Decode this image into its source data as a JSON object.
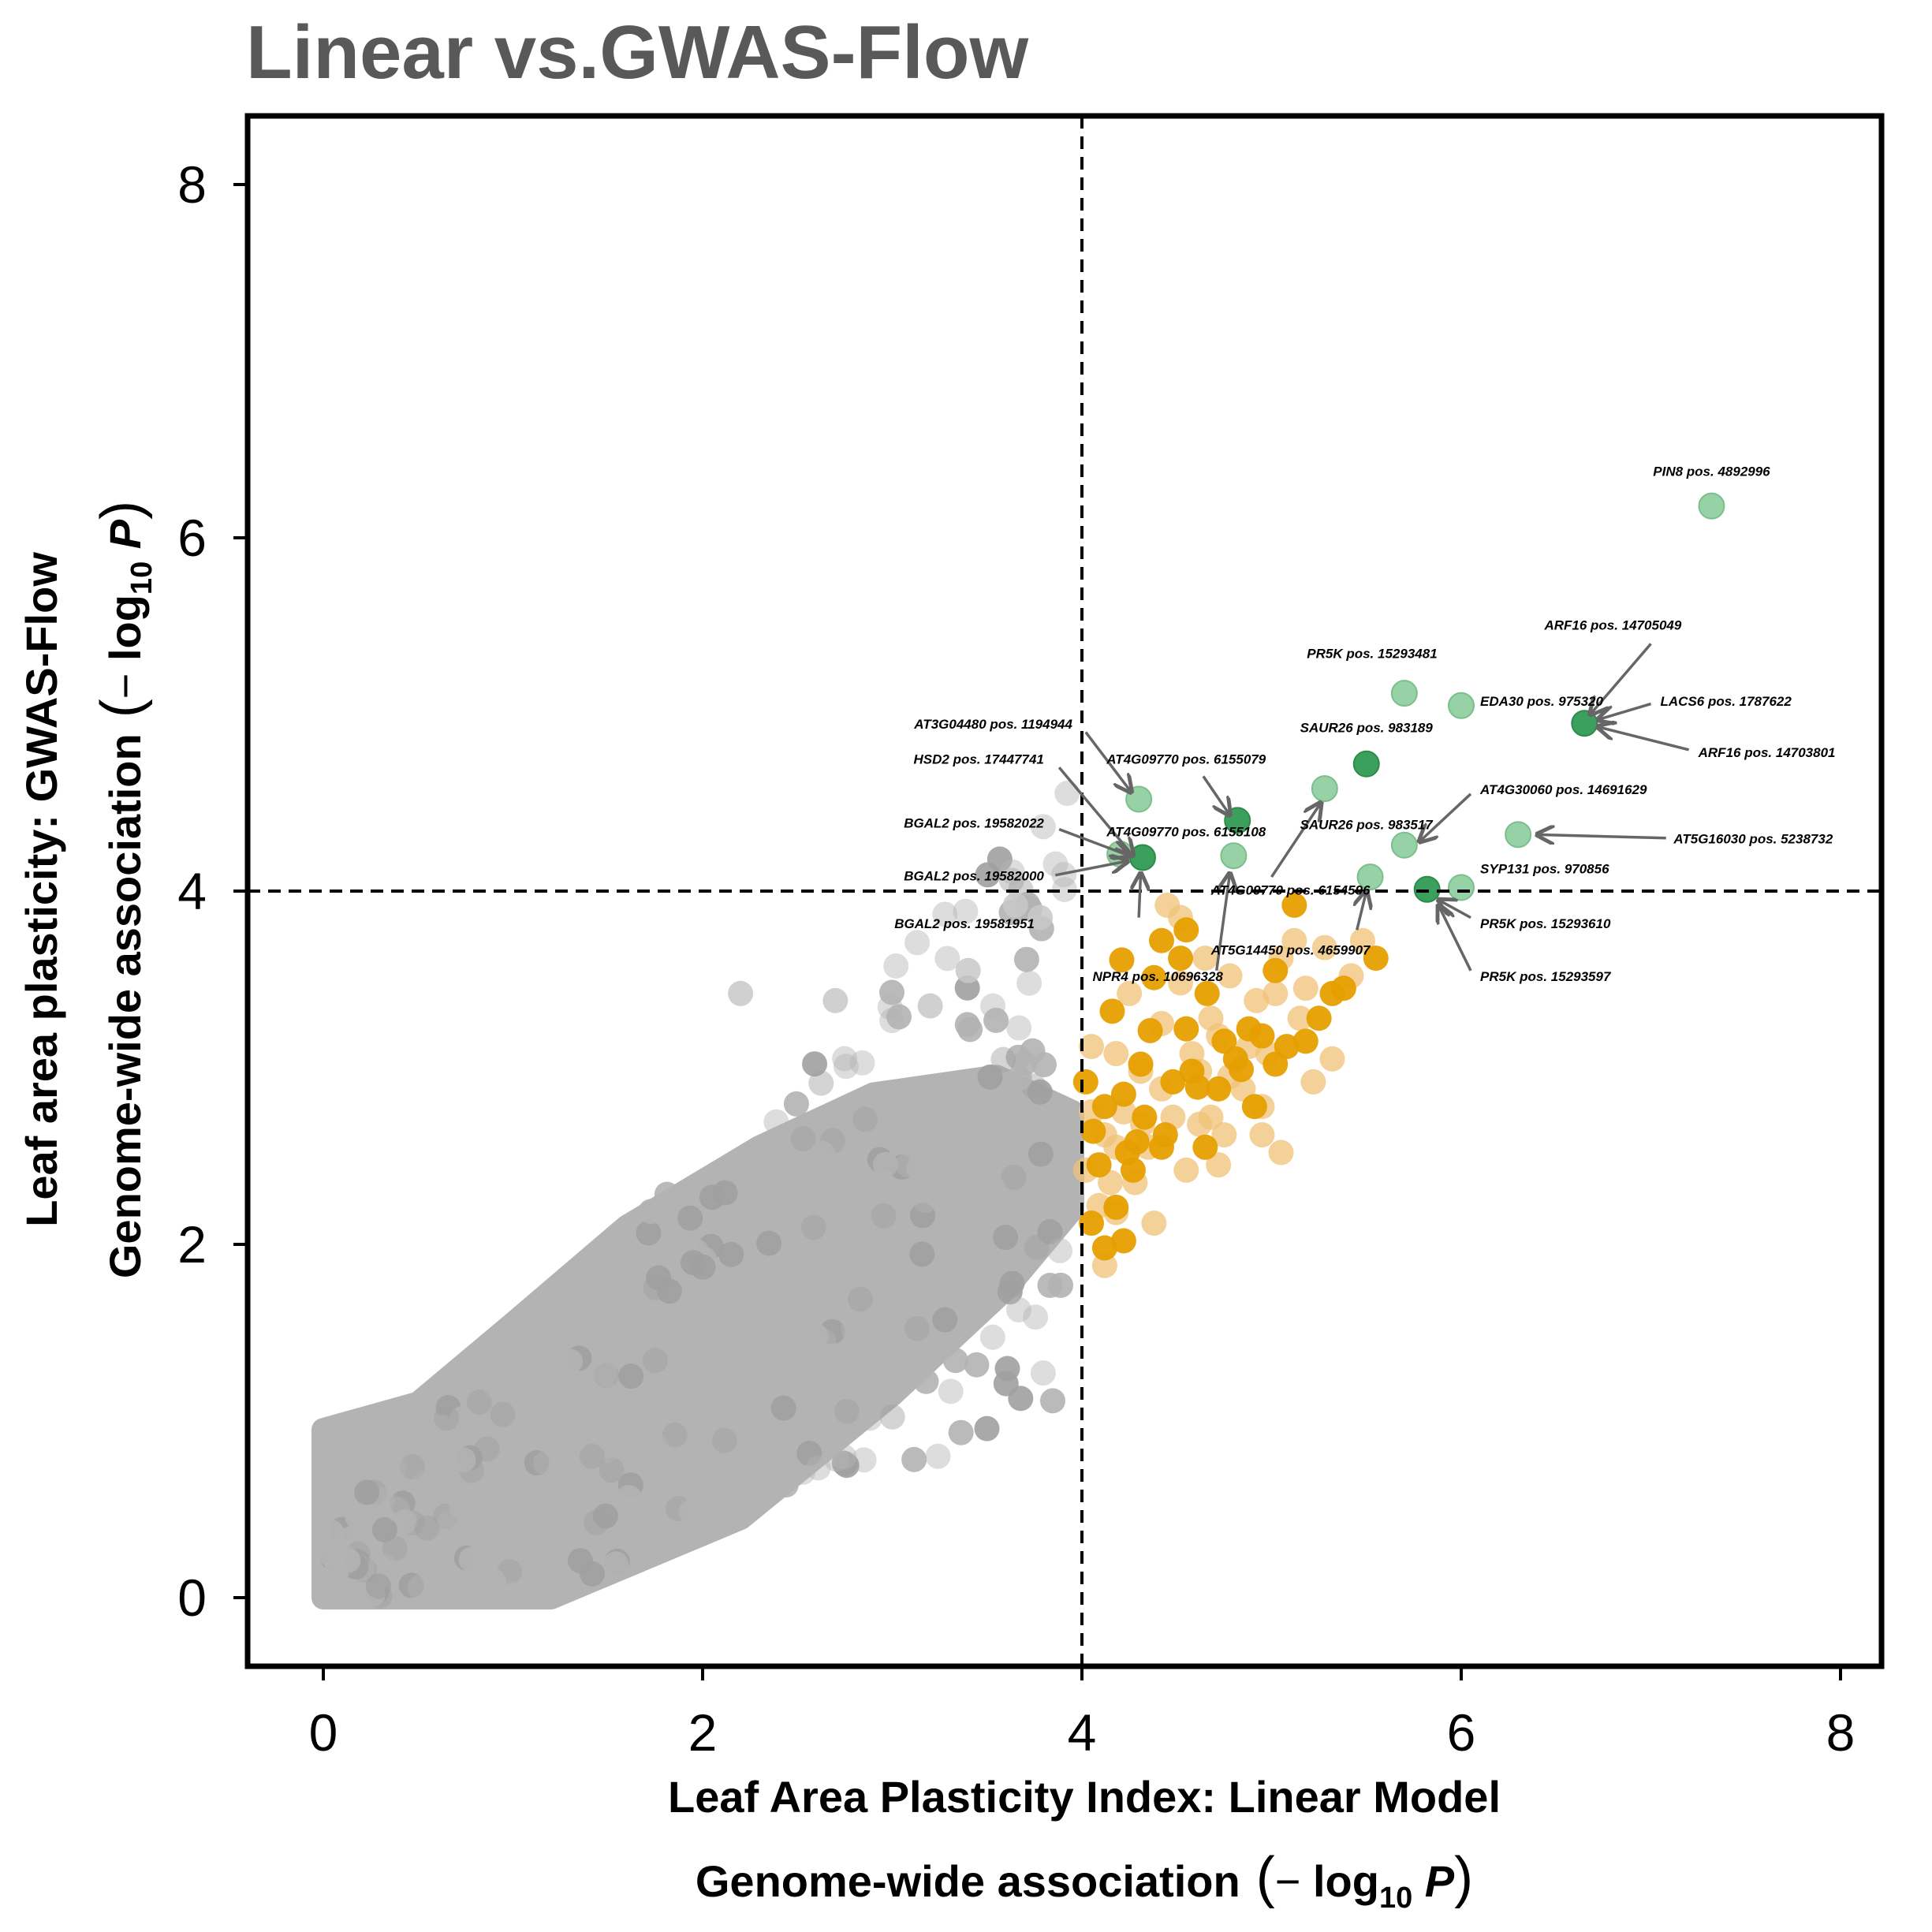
{
  "chart_data": {
    "type": "scatter",
    "title": "Linear vs.GWAS-Flow",
    "xlabel": {
      "line1": "Leaf Area Plasticity Index: Linear Model",
      "line2_prefix": "Genome-wide association",
      "log_label": "log",
      "log_base": "10",
      "p_label": "P"
    },
    "ylabel": {
      "line1": "Leaf area plasticity: GWAS-Flow",
      "line2_prefix": "Genome-wide association",
      "log_label": "log",
      "log_base": "10",
      "p_label": "P"
    },
    "xlim": [
      -0.4,
      8.4
    ],
    "ylim": [
      -0.4,
      8.4
    ],
    "xticks": [
      "0",
      "2",
      "4",
      "6",
      "8"
    ],
    "yticks": [
      "0",
      "2",
      "4",
      "6",
      "8"
    ],
    "thresholds": {
      "x": 4,
      "y": 4
    },
    "colors": {
      "background": "#b3b3b3",
      "light_orange": "#f0c277",
      "orange": "#e69f00",
      "light_green": "#8ccc9c",
      "green": "#3aa05c",
      "arrow": "#666666"
    },
    "orange_points": [
      [
        4.21,
        3.61
      ],
      [
        4.42,
        3.72
      ],
      [
        4.55,
        3.78
      ],
      [
        4.66,
        3.42
      ],
      [
        4.88,
        3.22
      ],
      [
        5.02,
        3.55
      ],
      [
        5.12,
        3.92
      ],
      [
        5.18,
        3.15
      ],
      [
        5.32,
        3.42
      ],
      [
        5.38,
        3.45
      ],
      [
        5.55,
        3.62
      ],
      [
        4.36,
        3.21
      ],
      [
        4.02,
        2.92
      ],
      [
        4.12,
        2.78
      ],
      [
        4.24,
        2.52
      ],
      [
        4.31,
        3.02
      ],
      [
        4.48,
        2.92
      ],
      [
        4.58,
        2.98
      ],
      [
        4.72,
        2.88
      ],
      [
        4.91,
        2.78
      ],
      [
        4.05,
        2.12
      ],
      [
        4.18,
        2.21
      ],
      [
        4.22,
        2.02
      ],
      [
        4.12,
        1.98
      ],
      [
        4.29,
        2.58
      ],
      [
        4.42,
        2.55
      ],
      [
        4.55,
        3.22
      ],
      [
        4.16,
        3.32
      ],
      [
        4.38,
        3.51
      ],
      [
        4.52,
        3.62
      ],
      [
        5.02,
        3.02
      ],
      [
        5.08,
        3.12
      ],
      [
        4.84,
        2.99
      ],
      [
        4.65,
        2.55
      ],
      [
        4.22,
        2.85
      ],
      [
        4.06,
        2.64
      ],
      [
        4.33,
        2.72
      ],
      [
        4.75,
        3.15
      ],
      [
        5.25,
        3.28
      ],
      [
        4.95,
        3.18
      ],
      [
        4.27,
        2.42
      ],
      [
        4.09,
        2.45
      ],
      [
        4.44,
        2.62
      ],
      [
        4.61,
        2.89
      ],
      [
        4.81,
        3.05
      ]
    ],
    "light_orange_points": [
      [
        4.45,
        3.92
      ],
      [
        4.52,
        3.85
      ],
      [
        4.65,
        3.62
      ],
      [
        4.78,
        3.52
      ],
      [
        4.92,
        3.38
      ],
      [
        5.05,
        3.62
      ],
      [
        5.12,
        3.72
      ],
      [
        5.28,
        3.68
      ],
      [
        5.42,
        3.52
      ],
      [
        5.15,
        3.28
      ],
      [
        4.98,
        3.08
      ],
      [
        4.72,
        3.18
      ],
      [
        4.58,
        3.08
      ],
      [
        4.42,
        3.25
      ],
      [
        4.31,
        2.98
      ],
      [
        4.18,
        3.08
      ],
      [
        4.05,
        3.12
      ],
      [
        4.12,
        2.62
      ],
      [
        4.28,
        2.35
      ],
      [
        4.18,
        2.18
      ],
      [
        4.12,
        1.88
      ],
      [
        4.38,
        2.12
      ],
      [
        4.55,
        2.42
      ],
      [
        4.68,
        2.72
      ],
      [
        4.95,
        2.62
      ],
      [
        5.05,
        2.52
      ],
      [
        5.22,
        2.92
      ],
      [
        4.85,
        2.88
      ],
      [
        4.75,
        2.62
      ],
      [
        4.48,
        2.72
      ],
      [
        4.35,
        2.55
      ],
      [
        4.22,
        2.75
      ],
      [
        4.62,
        2.98
      ],
      [
        4.88,
        3.12
      ],
      [
        5.32,
        3.05
      ],
      [
        5.18,
        3.45
      ],
      [
        4.02,
        2.42
      ],
      [
        4.09,
        2.22
      ],
      [
        4.25,
        3.42
      ],
      [
        4.52,
        3.48
      ],
      [
        4.68,
        3.28
      ],
      [
        5.02,
        3.42
      ],
      [
        4.78,
        2.95
      ],
      [
        4.42,
        2.88
      ],
      [
        4.15,
        2.35
      ],
      [
        5.48,
        3.72
      ],
      [
        4.95,
        2.78
      ],
      [
        4.62,
        2.68
      ],
      [
        4.32,
        2.68
      ],
      [
        4.05,
        2.75
      ],
      [
        4.18,
        2.55
      ],
      [
        4.72,
        2.45
      ]
    ],
    "light_green_points": [
      [
        7.32,
        6.18
      ],
      [
        5.7,
        5.12
      ],
      [
        6.0,
        5.05
      ],
      [
        5.28,
        4.58
      ],
      [
        4.3,
        4.52
      ],
      [
        5.7,
        4.26
      ],
      [
        6.3,
        4.32
      ],
      [
        4.8,
        4.2
      ],
      [
        4.2,
        4.21
      ],
      [
        5.52,
        4.08
      ],
      [
        6.0,
        4.02
      ]
    ],
    "green_points": [
      [
        6.65,
        4.95
      ],
      [
        5.5,
        4.72
      ],
      [
        4.82,
        4.4
      ],
      [
        4.32,
        4.19
      ],
      [
        5.82,
        4.01
      ]
    ],
    "annotations": [
      {
        "text": "PIN8 pos. 4892996",
        "tx": 7.32,
        "ty": 6.35,
        "anchor": "middle"
      },
      {
        "text": "ARF16 pos. 14705049",
        "tx": 6.8,
        "ty": 5.48,
        "anchor": "middle",
        "ax": 7.0,
        "ay": 5.4,
        "px": 6.68,
        "py": 5.0
      },
      {
        "text": "LACS6 pos. 1787622",
        "tx": 7.05,
        "ty": 5.05,
        "anchor": "start",
        "ax": 7.0,
        "ay": 5.06,
        "px": 6.72,
        "py": 4.97
      },
      {
        "text": "ARF16 pos. 14703801",
        "tx": 7.25,
        "ty": 4.76,
        "anchor": "start",
        "ax": 7.2,
        "ay": 4.8,
        "px": 6.72,
        "py": 4.93
      },
      {
        "text": "PR5K pos. 15293481",
        "tx": 5.53,
        "ty": 5.32,
        "anchor": "middle"
      },
      {
        "text": "EDA30 pos. 975320",
        "tx": 6.1,
        "ty": 5.05,
        "anchor": "start"
      },
      {
        "text": "SAUR26 pos. 983189",
        "tx": 5.5,
        "ty": 4.9,
        "anchor": "middle"
      },
      {
        "text": "AT3G04480 pos. 1194944",
        "tx": 3.95,
        "ty": 4.92,
        "anchor": "end",
        "ax": 4.02,
        "ay": 4.9,
        "px": 4.26,
        "py": 4.56
      },
      {
        "text": "AT4G09770 pos. 6155079",
        "tx": 4.55,
        "ty": 4.72,
        "anchor": "middle",
        "ax": 4.64,
        "ay": 4.65,
        "px": 4.78,
        "py": 4.43
      },
      {
        "text": "HSD2 pos. 17447741",
        "tx": 3.8,
        "ty": 4.72,
        "anchor": "end",
        "ax": 3.88,
        "ay": 4.7,
        "px": 4.27,
        "py": 4.2
      },
      {
        "text": "AT4G30060 pos. 14691629",
        "tx": 6.1,
        "ty": 4.55,
        "anchor": "start",
        "ax": 6.05,
        "ay": 4.55,
        "px": 5.78,
        "py": 4.28
      },
      {
        "text": "SAUR26 pos. 983517",
        "tx": 5.15,
        "ty": 4.35,
        "anchor": "start"
      },
      {
        "text": "BGAL2 pos. 19582022",
        "tx": 3.8,
        "ty": 4.36,
        "anchor": "end",
        "ax": 3.88,
        "ay": 4.35,
        "px": 4.25,
        "py": 4.2
      },
      {
        "text": "AT4G09770 pos. 6155108",
        "tx": 4.55,
        "ty": 4.31,
        "anchor": "middle"
      },
      {
        "text": "AT5G16030 pos. 5238732",
        "tx": 7.12,
        "ty": 4.27,
        "anchor": "start",
        "ax": 7.08,
        "ay": 4.3,
        "px": 6.4,
        "py": 4.32
      },
      {
        "text": "BGAL2 pos. 19582000",
        "tx": 3.8,
        "ty": 4.06,
        "anchor": "end",
        "ax": 3.86,
        "ay": 4.09,
        "px": 4.24,
        "py": 4.17
      },
      {
        "text": "SYP131 pos. 970856",
        "tx": 6.1,
        "ty": 4.1,
        "anchor": "start"
      },
      {
        "text": "AT4G09770 pos. 6154596",
        "tx": 5.1,
        "ty": 3.98,
        "anchor": "middle",
        "ax": 5.0,
        "ay": 4.08,
        "px": 5.26,
        "py": 4.5
      },
      {
        "text": "BGAL2 pos. 19581951",
        "tx": 3.75,
        "ty": 3.79,
        "anchor": "end",
        "ax": 4.3,
        "ay": 3.85,
        "px": 4.31,
        "py": 4.1
      },
      {
        "text": "PR5K pos. 15293610",
        "tx": 6.1,
        "ty": 3.79,
        "anchor": "start",
        "ax": 6.05,
        "ay": 3.85,
        "px": 5.88,
        "py": 3.95
      },
      {
        "text": "AT5G14450 pos. 4659907",
        "tx": 5.1,
        "ty": 3.64,
        "anchor": "middle",
        "ax": 5.45,
        "ay": 3.78,
        "px": 5.5,
        "py": 4.0
      },
      {
        "text": "NPR4 pos. 10696328",
        "tx": 4.4,
        "ty": 3.49,
        "anchor": "middle",
        "ax": 4.71,
        "ay": 3.55,
        "px": 4.78,
        "py": 4.1
      },
      {
        "text": "PR5K pos. 15293597",
        "tx": 6.1,
        "ty": 3.49,
        "anchor": "start",
        "ax": 6.05,
        "ay": 3.55,
        "px": 5.88,
        "py": 3.92
      }
    ]
  }
}
